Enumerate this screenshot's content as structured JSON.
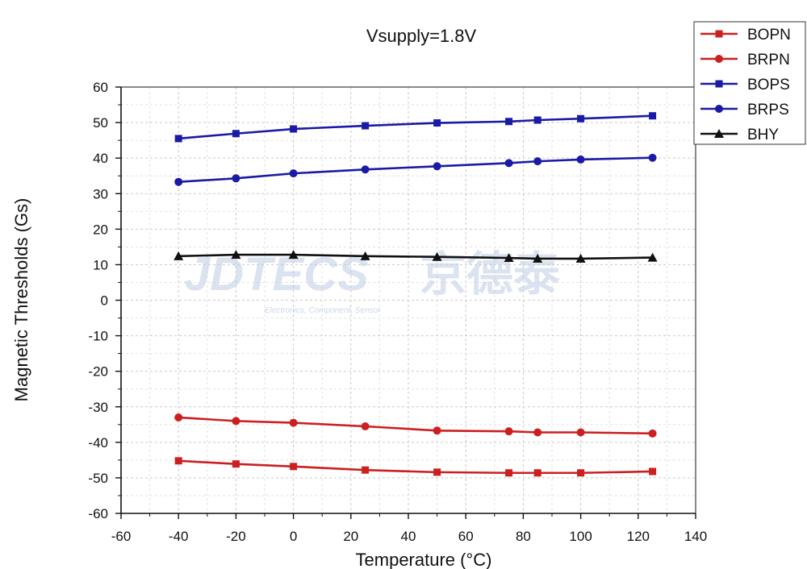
{
  "chart_data": {
    "type": "line",
    "title": "Vsupply=1.8V",
    "xlabel": "Temperature (°C)",
    "ylabel": "Magnetic Thresholds (Gs)",
    "xlim": [
      -60,
      140
    ],
    "ylim": [
      -60,
      60
    ],
    "xticks": [
      -60,
      -40,
      -20,
      0,
      20,
      40,
      60,
      80,
      100,
      120,
      140
    ],
    "yticks": [
      60,
      50,
      40,
      30,
      20,
      10,
      0,
      -10,
      -20,
      -30,
      -40,
      -50,
      -60
    ],
    "grid": true,
    "legend_position": "top-right",
    "x": [
      -40,
      -20,
      0,
      25,
      50,
      75,
      85,
      100,
      125
    ],
    "series": [
      {
        "name": "BOPN",
        "color": "#cc1f1f",
        "marker": "square",
        "values": [
          -45.2,
          -46.1,
          -46.8,
          -47.8,
          -48.4,
          -48.6,
          -48.6,
          -48.6,
          -48.2
        ]
      },
      {
        "name": "BRPN",
        "color": "#cc1f1f",
        "marker": "circle",
        "values": [
          -33.0,
          -34.0,
          -34.5,
          -35.5,
          -36.7,
          -36.9,
          -37.2,
          -37.2,
          -37.5
        ]
      },
      {
        "name": "BOPS",
        "color": "#1a1aa6",
        "marker": "square",
        "values": [
          45.5,
          46.9,
          48.2,
          49.1,
          49.9,
          50.3,
          50.7,
          51.1,
          51.9
        ]
      },
      {
        "name": "BRPS",
        "color": "#1a1aa6",
        "marker": "circle",
        "values": [
          33.3,
          34.3,
          35.7,
          36.8,
          37.7,
          38.6,
          39.1,
          39.6,
          40.1
        ]
      },
      {
        "name": "BHY",
        "color": "#111111",
        "marker": "triangle",
        "values": [
          12.4,
          12.8,
          12.8,
          12.4,
          12.2,
          11.9,
          11.7,
          11.7,
          12.0
        ]
      }
    ]
  },
  "watermark": {
    "brand": "JDTECS",
    "brand_cn": "京德泰",
    "tagline": "Electronics, Component, Sensor"
  }
}
